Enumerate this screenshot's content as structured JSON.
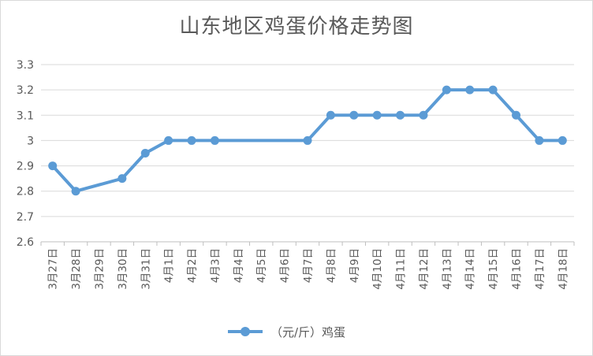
{
  "chart_data": {
    "type": "line",
    "title": "山东地区鸡蛋价格走势图",
    "categories": [
      "3月27日",
      "3月28日",
      "3月29日",
      "3月30日",
      "3月31日",
      "4月1日",
      "4月2日",
      "4月3日",
      "4月4日",
      "4月5日",
      "4月6日",
      "4月7日",
      "4月8日",
      "4月9日",
      "4月10日",
      "4月11日",
      "4月12日",
      "4月13日",
      "4月14日",
      "4月15日",
      "4月16日",
      "4月17日",
      "4月18日"
    ],
    "series": [
      {
        "name": "（元/斤）鸡蛋",
        "values": [
          2.9,
          2.8,
          null,
          2.85,
          2.95,
          3.0,
          3.0,
          3.0,
          null,
          null,
          null,
          3.0,
          3.1,
          3.1,
          3.1,
          3.1,
          3.1,
          3.2,
          3.2,
          3.2,
          3.1,
          3.0,
          3.0
        ]
      }
    ],
    "ylim": [
      2.6,
      3.3
    ],
    "yticks": [
      "2.6",
      "2.7",
      "2.8",
      "2.9",
      "3",
      "3.1",
      "3.2",
      "3.3"
    ],
    "xlabel": "",
    "ylabel": "",
    "grid": true,
    "legend": "bottom",
    "color": "#5b9bd5"
  }
}
